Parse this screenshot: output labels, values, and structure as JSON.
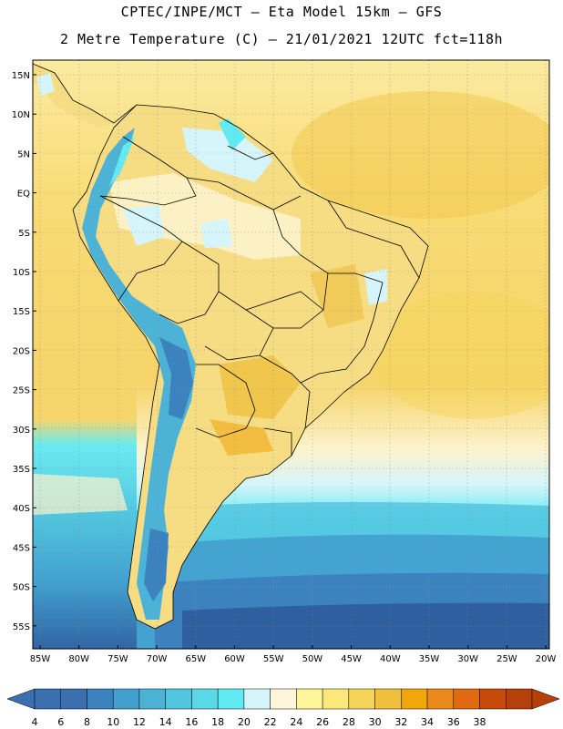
{
  "title_line1": "CPTEC/INPE/MCT –  Eta Model 15km – GFS",
  "title_line2": "2 Metre Temperature (C) – 21/01/2021 12UTC fct=118h",
  "lat_labels": [
    "15N",
    "10N",
    "5N",
    "EQ",
    "5S",
    "10S",
    "15S",
    "20S",
    "25S",
    "30S",
    "35S",
    "40S",
    "45S",
    "50S",
    "55S"
  ],
  "lon_labels": [
    "85W",
    "80W",
    "75W",
    "70W",
    "65W",
    "60W",
    "55W",
    "50W",
    "45W",
    "40W",
    "35W",
    "30W",
    "25W",
    "20W"
  ],
  "colorbar": {
    "labels": [
      "4",
      "6",
      "8",
      "10",
      "12",
      "14",
      "16",
      "18",
      "20",
      "22",
      "24",
      "26",
      "28",
      "30",
      "32",
      "34",
      "36",
      "38"
    ],
    "colors": [
      "#3a6fb0",
      "#3b82bf",
      "#42a0cf",
      "#4cb3d6",
      "#52c6df",
      "#5ad8e8",
      "#62eaf2",
      "#d6f5fa",
      "#fdf6dc",
      "#fdf59a",
      "#fbe77a",
      "#f5d45a",
      "#efc03e",
      "#f1a60a",
      "#ea8a1c",
      "#e06a10",
      "#c84a0a",
      "#b5400a"
    ]
  },
  "legend_colors": {
    "ocean_warm": "#f7d97a",
    "ocean_cool": "#5ad8e8",
    "ocean_cold": "#3a6fb0",
    "land_hot": "#efc03e",
    "andes": "#4cb3d6"
  }
}
